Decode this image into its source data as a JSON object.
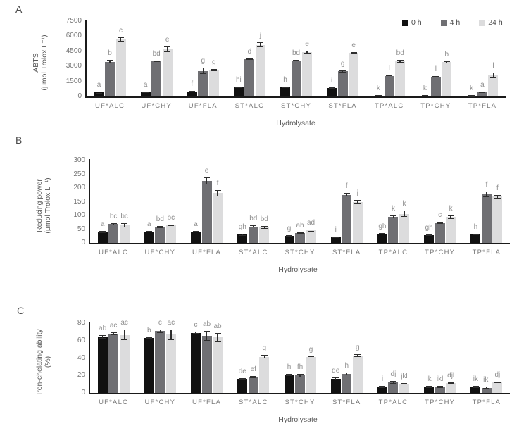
{
  "figure": {
    "xlabel": "Hydrolysate",
    "legend_items": [
      "0 h",
      "4 h",
      "24 h"
    ]
  },
  "colors": {
    "series_0h": "#111111",
    "series_4h": "#6f6f73",
    "series_24h": "#dcdcdd",
    "axis": "#1a1a1a",
    "error_bar": "#2e2e2e",
    "tick_text": "#757575",
    "category_text": "#7a7a7a",
    "significance_letter_text": "#8f8f8f",
    "axis_title_text": "#5a5a5a"
  },
  "chart_data": [
    {
      "panel": "A",
      "type": "bar",
      "ylabel": [
        "ABTS",
        "(μmol Trolox L⁻¹)"
      ],
      "xlabel": "Hydrolysate",
      "ylim": [
        0,
        7500
      ],
      "ytick_step": 1500,
      "grid": false,
      "legend_position": "top-right",
      "categories": [
        "UF*ALC",
        "UF*CHY",
        "UF*FLA",
        "ST*ALC",
        "ST*CHY",
        "ST*FLA",
        "TP*ALC",
        "TP*CHY",
        "TP*FLA"
      ],
      "series": [
        {
          "name": "0 h",
          "color": "#111111",
          "values": [
            400,
            420,
            500,
            900,
            920,
            850,
            60,
            60,
            50
          ],
          "errors": [
            60,
            50,
            60,
            60,
            50,
            70,
            25,
            25,
            20
          ],
          "letters": [
            "a",
            "a",
            "f",
            "hi",
            "h",
            "i",
            "k",
            "k",
            "k"
          ]
        },
        {
          "name": "4 h",
          "color": "#6f6f73",
          "values": [
            3450,
            3500,
            2550,
            3720,
            3570,
            2500,
            2000,
            1960,
            430
          ],
          "errors": [
            180,
            80,
            330,
            80,
            60,
            90,
            60,
            50,
            40
          ],
          "letters": [
            "b",
            "bd",
            "g",
            "d",
            "bd",
            "g",
            "l",
            "l",
            "a"
          ]
        },
        {
          "name": "24 h",
          "color": "#dcdcdd",
          "values": [
            5700,
            4700,
            2620,
            5150,
            4420,
            4330,
            3500,
            3400,
            2100
          ],
          "errors": [
            200,
            300,
            120,
            230,
            160,
            70,
            120,
            90,
            260
          ],
          "letters": [
            "c",
            "e",
            "g",
            "j",
            "e",
            "e",
            "bd",
            "b",
            "l"
          ]
        }
      ]
    },
    {
      "panel": "B",
      "type": "bar",
      "ylabel": [
        "Reducing power",
        "(μmol Trolox L⁻¹)"
      ],
      "xlabel": "Hydrolysate",
      "ylim": [
        0,
        300
      ],
      "ytick_step": 50,
      "grid": false,
      "categories": [
        "UF*ALC",
        "UF*CHY",
        "UF*FLA",
        "ST*ALC",
        "ST*CHY",
        "ST*FLA",
        "TP*ALC",
        "TP*CHY",
        "TP*FLA"
      ],
      "series": [
        {
          "name": "0 h",
          "color": "#111111",
          "values": [
            40,
            41,
            41,
            30,
            26,
            21,
            33,
            28,
            31
          ],
          "errors": [
            3,
            3,
            3,
            4,
            2,
            2,
            2,
            2,
            2
          ],
          "letters": [
            "a",
            "a",
            "a",
            "gh",
            "g",
            "i",
            "gh",
            "gh",
            "h"
          ]
        },
        {
          "name": "4 h",
          "color": "#6f6f73",
          "values": [
            68,
            58,
            226,
            60,
            36,
            175,
            95,
            73,
            176
          ],
          "errors": [
            4,
            3,
            12,
            3,
            2,
            6,
            6,
            5,
            10
          ],
          "letters": [
            "bc",
            "bd",
            "e",
            "bd",
            "ah",
            "f",
            "k",
            "c",
            "f"
          ]
        },
        {
          "name": "24 h",
          "color": "#dcdcdd",
          "values": [
            64,
            64,
            181,
            57,
            45,
            150,
            106,
            94,
            168
          ],
          "errors": [
            8,
            3,
            12,
            5,
            2,
            6,
            11,
            6,
            6
          ],
          "letters": [
            "bc",
            "bc",
            "f",
            "bd",
            "ad",
            "j",
            "k",
            "k",
            "f"
          ]
        }
      ]
    },
    {
      "panel": "C",
      "type": "bar",
      "ylabel": [
        "Iron-chelating ability",
        "(%)"
      ],
      "xlabel": "Hydrolysate",
      "ylim": [
        0,
        80
      ],
      "ytick_step": 20,
      "grid": false,
      "categories": [
        "UF*ALC",
        "UF*CHY",
        "UF*FLA",
        "ST*ALC",
        "ST*CHY",
        "ST*FLA",
        "TP*ALC",
        "TP*CHY",
        "TP*FLA"
      ],
      "series": [
        {
          "name": "0 h",
          "color": "#111111",
          "values": [
            64.5,
            63,
            69,
            16,
            20.5,
            16,
            7,
            7,
            7
          ],
          "errors": [
            2,
            1,
            1,
            1,
            1,
            1.5,
            1,
            0.8,
            0.8
          ],
          "letters": [
            "ab",
            "b",
            "c",
            "de",
            "h",
            "de",
            "i",
            "ik",
            "ik"
          ]
        },
        {
          "name": "4 h",
          "color": "#6f6f73",
          "values": [
            68,
            71,
            65.5,
            18,
            20,
            22,
            12,
            7,
            6
          ],
          "errors": [
            1.5,
            2,
            6,
            0.8,
            2,
            1.5,
            1.5,
            0.8,
            0.8
          ],
          "letters": [
            "ac",
            "c",
            "ab",
            "ef",
            "fh",
            "h",
            "dj",
            "ikl",
            "ikl"
          ]
        },
        {
          "name": "24 h",
          "color": "#dcdcdd",
          "values": [
            66.5,
            67,
            64,
            41.5,
            41,
            43,
            10.5,
            11.5,
            12
          ],
          "errors": [
            6,
            6,
            5,
            2,
            1,
            1.5,
            1,
            1,
            1
          ],
          "letters": [
            "ac",
            "ac",
            "ab",
            "g",
            "g",
            "g",
            "jkl",
            "djl",
            "dj"
          ]
        }
      ]
    }
  ]
}
